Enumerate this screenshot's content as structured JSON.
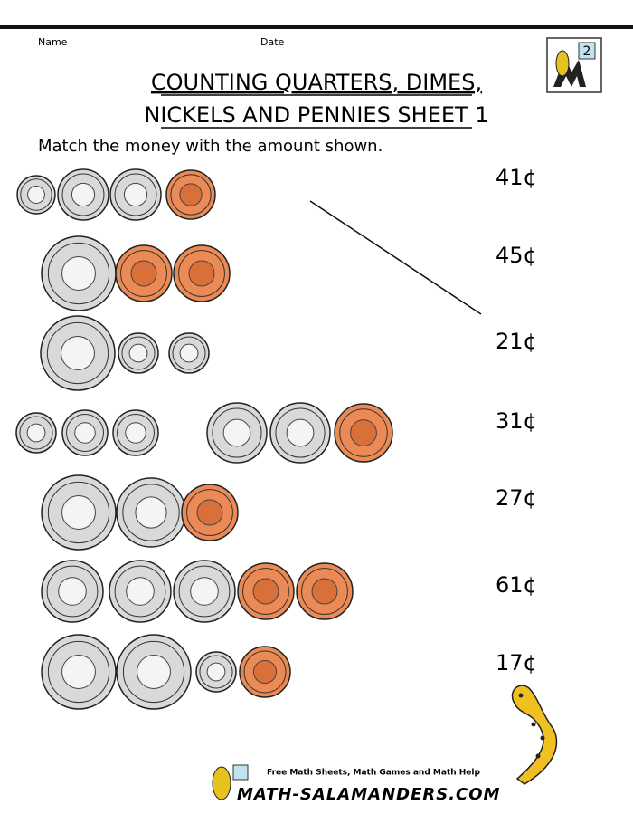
{
  "header": {
    "name_label": "Name",
    "date_label": "Date",
    "logo_grade": "2"
  },
  "title": {
    "lines": [
      "COUNTING QUARTERS, DIMES,",
      "NICKELS AND PENNIES SHEET 1"
    ]
  },
  "instruction": "Match the money with the amount shown.",
  "amounts": [
    "41¢",
    "45¢",
    "21¢",
    "31¢",
    "27¢",
    "61¢",
    "17¢"
  ],
  "footer": {
    "tagline": "Free Math Sheets, Math Games and Math Help",
    "site": "MATH-SALAMANDERS.COM"
  }
}
